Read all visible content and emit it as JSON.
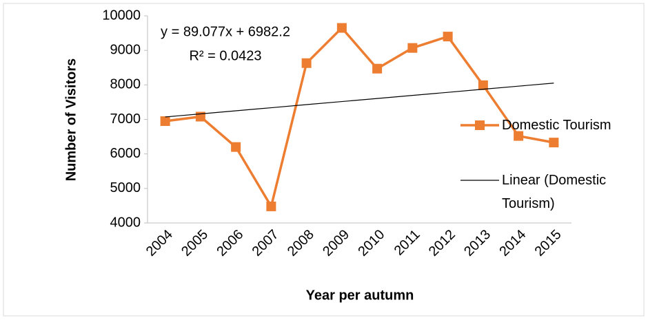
{
  "chart_data": {
    "type": "line",
    "xlabel": "Year per autumn",
    "ylabel": "Number of Visitors",
    "annotations": [
      "y = 89.077x + 6982.2",
      "R² = 0.0423"
    ],
    "categories": [
      "2004",
      "2005",
      "2006",
      "2007",
      "2008",
      "2009",
      "2010",
      "2011",
      "2012",
      "2013",
      "2014",
      "2015"
    ],
    "series": [
      {
        "name": "Domestic Tourism",
        "color": "#ed7d31",
        "marker": "square",
        "values": [
          6950,
          7080,
          6200,
          4480,
          8630,
          9650,
          8470,
          9070,
          9400,
          7990,
          6520,
          6330
        ]
      },
      {
        "name": "Linear (Domestic Tourism)",
        "color": "#000000",
        "marker": "none",
        "values": [
          7071,
          7160,
          7249,
          7338,
          7428,
          7517,
          7606,
          7695,
          7784,
          7874,
          7963,
          8052
        ]
      }
    ],
    "ylim": [
      4000,
      10000
    ],
    "yticks": [
      4000,
      5000,
      6000,
      7000,
      8000,
      9000,
      10000
    ],
    "grid": false,
    "legend": "right"
  }
}
